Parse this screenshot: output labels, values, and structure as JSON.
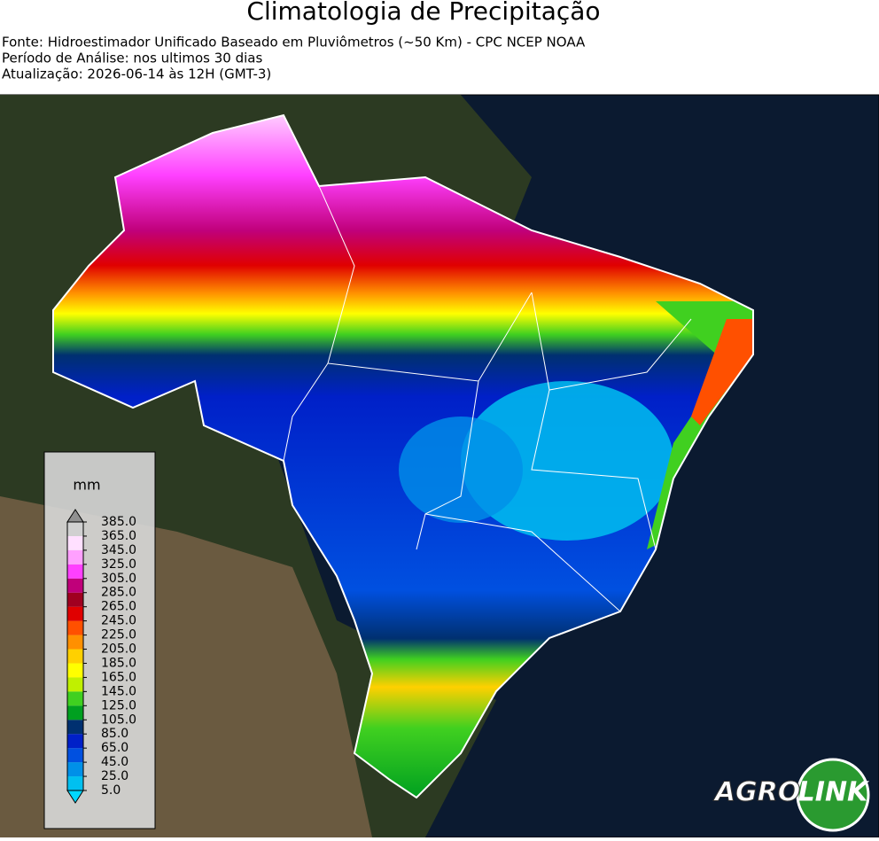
{
  "header": {
    "title": "Climatologia de Precipitação",
    "lines": [
      "Fonte: Hidroestimador Unificado Baseado em Pluviômetros (~50 Km) - CPC NCEP NOAA",
      "Período de Análise: nos ultimos 30 dias",
      "Atualização: 2026-06-14 às 12H (GMT-3)"
    ]
  },
  "legend": {
    "title": "mm",
    "ticks": [
      {
        "value": 5,
        "label": "5.0"
      },
      {
        "value": 25,
        "label": "25.0"
      },
      {
        "value": 45,
        "label": "45.0"
      },
      {
        "value": 65,
        "label": "65.0"
      },
      {
        "value": 85,
        "label": "85.0"
      },
      {
        "value": 105,
        "label": "105.0"
      },
      {
        "value": 125,
        "label": "125.0"
      },
      {
        "value": 145,
        "label": "145.0"
      },
      {
        "value": 165,
        "label": "165.0"
      },
      {
        "value": 185,
        "label": "185.0"
      },
      {
        "value": 205,
        "label": "205.0"
      },
      {
        "value": 225,
        "label": "225.0"
      },
      {
        "value": 245,
        "label": "245.0"
      },
      {
        "value": 265,
        "label": "265.0"
      },
      {
        "value": 285,
        "label": "285.0"
      },
      {
        "value": 305,
        "label": "305.0"
      },
      {
        "value": 325,
        "label": "325.0"
      },
      {
        "value": 345,
        "label": "345.0"
      },
      {
        "value": 365,
        "label": "365.0"
      },
      {
        "value": 385,
        "label": "385.0"
      }
    ],
    "under_color": "#00d8ff",
    "colors": [
      "#00c0f0",
      "#0090e8",
      "#0050e0",
      "#0020c8",
      "#003070",
      "#00a020",
      "#40d020",
      "#c0f000",
      "#ffff00",
      "#ffd000",
      "#ff9000",
      "#ff5000",
      "#e00000",
      "#a00020",
      "#c0007a",
      "#ff40ff",
      "#ffa0ff",
      "#ffe0ff",
      "#d0d0d0"
    ],
    "over_color": "#909090"
  },
  "logo": {
    "left": "AGRO",
    "right": "LINK"
  }
}
